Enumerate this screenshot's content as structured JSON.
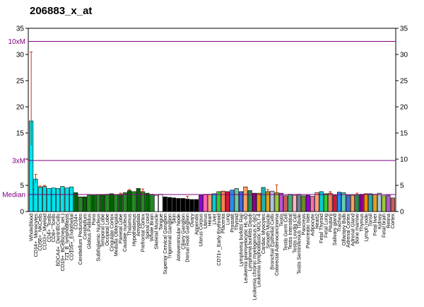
{
  "chart_data": {
    "type": "bar",
    "title": "206883_x_at",
    "ylim": [
      0,
      35
    ],
    "yticks": [
      0,
      5,
      10,
      15,
      20,
      25,
      30,
      35
    ],
    "reference_lines": [
      {
        "label": "10xM",
        "value": 32.5
      },
      {
        "label": "3xM",
        "value": 9.75
      },
      {
        "label": "Median",
        "value": 3.25
      }
    ],
    "colors": {
      "line": "#800080",
      "error": "#cc3300"
    },
    "series": [
      {
        "values": [
          17.3,
          6.2,
          4.7,
          4.8,
          4.4,
          4.5,
          4.4,
          4.8,
          4.5,
          4.7,
          3.6,
          2.8,
          2.8,
          3.2,
          3.1,
          3.2,
          3.2,
          3.3,
          3.4,
          3.2,
          3.3,
          3.6,
          4.0,
          3.8,
          4.4,
          3.8,
          3.5,
          3.3,
          3.1,
          3.3,
          2.8,
          2.7,
          2.6,
          2.5,
          2.5,
          2.4,
          2.3,
          2.3,
          3.1,
          3.3,
          3.3,
          3.4,
          3.8,
          3.9,
          3.8,
          4.1,
          4.4,
          3.8,
          4.7,
          4.0,
          3.5,
          3.5,
          4.6,
          3.8,
          3.9,
          3.6,
          3.5,
          3.0,
          3.3,
          3.1,
          3.3,
          3.0,
          3.1,
          2.9,
          3.6,
          3.8,
          3.4,
          3.5,
          3.1,
          3.7,
          3.6,
          3.1,
          3.1,
          3.2,
          3.3,
          3.4,
          3.4,
          3.3,
          3.5,
          3.0,
          3.1,
          2.6
        ]
      }
    ],
    "errors": [
      {
        "i": 0,
        "lo": 12.6,
        "hi": 30.5
      },
      {
        "i": 1,
        "lo": 5.4,
        "hi": 7.1
      },
      {
        "i": 2,
        "lo": 4.5,
        "hi": 4.9
      },
      {
        "i": 3,
        "lo": 4.6,
        "hi": 5.0
      },
      {
        "i": 20,
        "lo": 3.1,
        "hi": 3.5
      },
      {
        "i": 22,
        "lo": 3.8,
        "hi": 4.2
      },
      {
        "i": 25,
        "lo": 3.5,
        "hi": 4.3
      },
      {
        "i": 35,
        "lo": 2.2,
        "hi": 2.9
      },
      {
        "i": 53,
        "lo": 3.4,
        "hi": 4.2
      },
      {
        "i": 55,
        "lo": 3.3,
        "hi": 5.1
      },
      {
        "i": 67,
        "lo": 3.2,
        "hi": 3.8
      },
      {
        "i": 73,
        "lo": 3.0,
        "hi": 3.5
      }
    ],
    "categories": [
      "WholeBlood",
      "CD14+_Monocytes",
      "CD56+_NKCells",
      "CD33+_Myeloid",
      "CD4+_Tcells",
      "CD8+_Tcells",
      "BDCA4+_DentriticCells",
      "CD19+_BCells(neg._sel.)",
      "721_B_lymphoblasts",
      "CD105+_Endothelial",
      "CD34+",
      "Cerebellum Peduncles",
      "Cerebellum",
      "Globus Pallidus",
      "Pons",
      "Subthalamic Nucleus",
      "Temporal Lobe",
      "Occipital Lobe",
      "Cingulate Cortex",
      "Medulla Oblongata",
      "Parietal Lobe",
      "Caudate nucleus",
      "Thalamus",
      "Hypothalamus",
      "Amygdala",
      "Prefrontal Cortex",
      "Spinal cord",
      "Whole Brain",
      "Skeletal Muscle",
      "Tongue",
      "Superior Cervical Ganglion",
      "Trigeminal Ganglion",
      "Skin",
      "Atrioventricular Node",
      "Ciliary Ganglion",
      "Dorsal Root Ganglion",
      "Ovary",
      "Appendix",
      "Uterus Corpus",
      "Uterus",
      "Heart",
      "Liver",
      "CD71+_Early Erythroid",
      "Placenta",
      "Lung",
      "Prostate",
      "Thyroid",
      "Lymphoma burkitts Raji",
      "Leukemia promyelocytic HL-60",
      "Lymphoma burkitts Daudi",
      "Leukemia chronic myelogenous K-562",
      "Leukemia lymphoblastic MOLT-4",
      "Cardiac Myocytes",
      "Smooth Muscle",
      "Bronchial Epithelial Cells",
      "Colorectal Adenocarcinoma",
      "Testis",
      "Testis Germ Cell",
      "Testis Interstitial",
      "Testis Leydig Cell",
      "Testis Seminiferous Tubule",
      "Pancreas",
      "Pancreatic Islet",
      "Adipocyte",
      "Heart2",
      "Fetal Thyroid",
      "Fetal Lung",
      "Pituitary",
      "Salivary gland",
      "Trachea",
      "Olfactory Bulb",
      "Adrenal Cortex",
      "Adrenal Gland",
      "Bone marrow",
      "Thymus",
      "Lymph node",
      "Tonsil",
      "Fetal liver",
      "Kidney",
      "Fetal brain",
      "Retina",
      "Cortex"
    ]
  }
}
